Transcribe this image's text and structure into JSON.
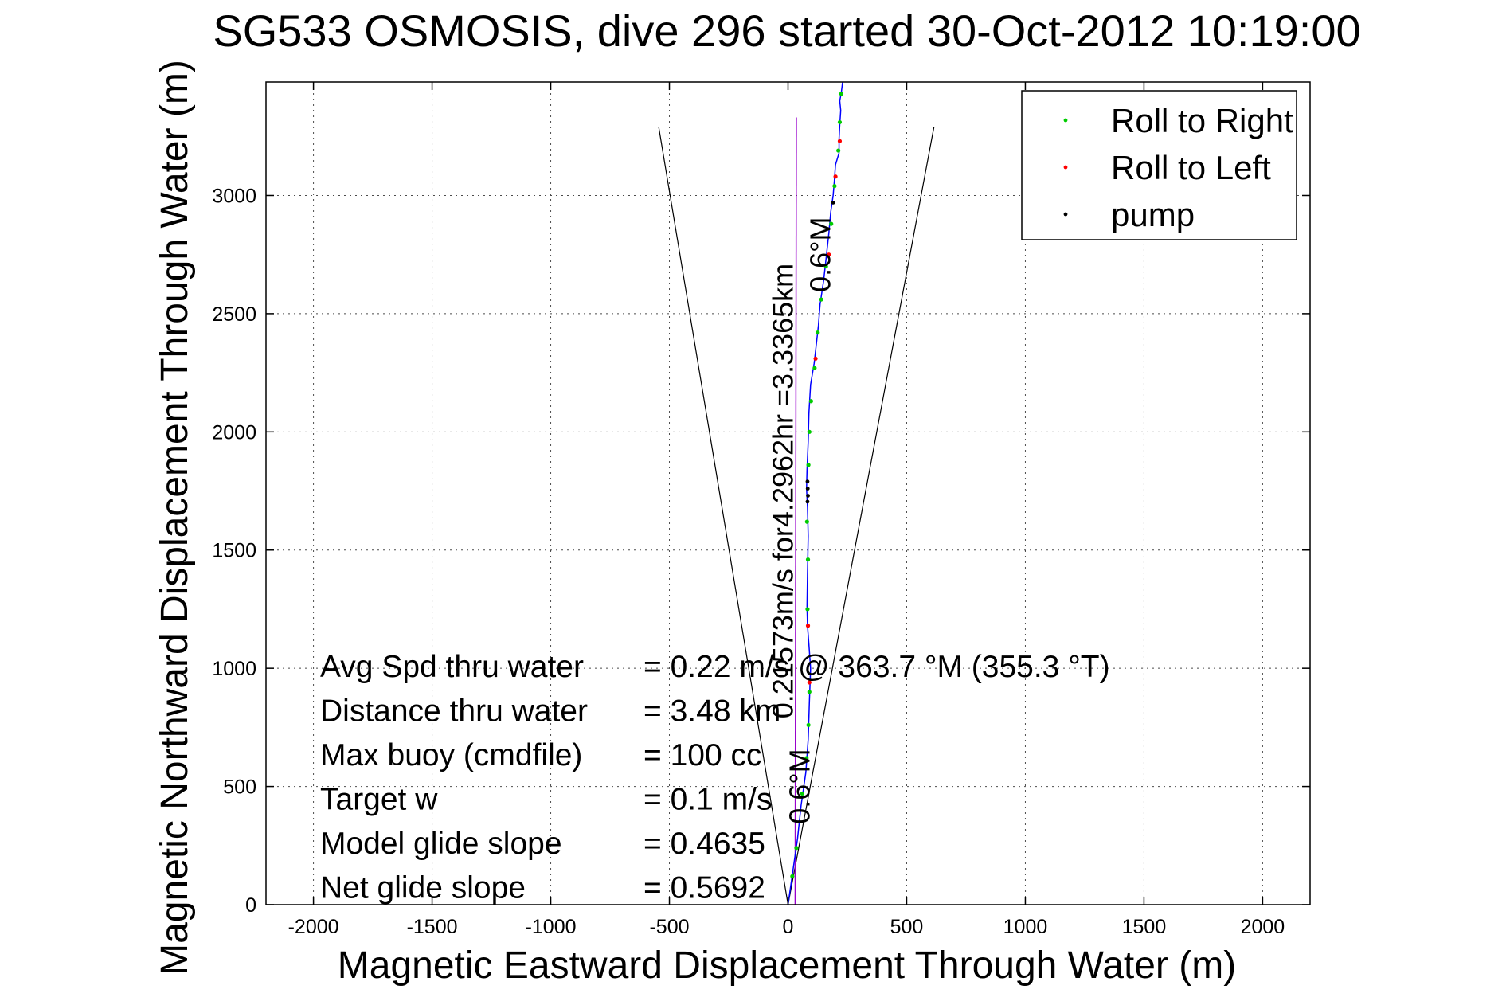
{
  "chart_data": {
    "type": "scatter",
    "title": "SG533 OSMOSIS, dive 296 started 30-Oct-2012 10:19:00",
    "xlabel": "Magnetic Eastward Displacement Through Water (m)",
    "ylabel": "Magnetic Northward Displacement Through Water (m)",
    "xlim": [
      -2200,
      2200
    ],
    "ylim": [
      0,
      3480
    ],
    "xticks": [
      -2000,
      -1500,
      -1000,
      -500,
      0,
      500,
      1000,
      1500,
      2000
    ],
    "yticks": [
      0,
      500,
      1000,
      1500,
      2000,
      2500,
      3000
    ],
    "grid": true,
    "legend": {
      "position": "top-right",
      "entries": [
        {
          "label": "Roll to Right",
          "color": "#00cc00"
        },
        {
          "label": "Roll to Left",
          "color": "#ff0000"
        },
        {
          "label": "pump",
          "color": "#000000"
        }
      ]
    },
    "track": {
      "color": "#0000ff",
      "x": [
        0,
        20,
        40,
        55,
        75,
        85,
        90,
        95,
        88,
        82,
        80,
        82,
        85,
        82,
        78,
        80,
        85,
        88,
        95,
        110,
        118,
        128,
        135,
        150,
        160,
        172,
        180,
        190,
        195,
        200,
        215,
        215,
        218,
        222,
        218,
        225,
        230
      ],
      "y": [
        0,
        140,
        280,
        420,
        560,
        700,
        860,
        1000,
        1100,
        1180,
        1260,
        1400,
        1560,
        1680,
        1760,
        1840,
        1960,
        2080,
        2200,
        2290,
        2360,
        2450,
        2540,
        2640,
        2730,
        2840,
        2930,
        3000,
        3060,
        3130,
        3180,
        3240,
        3300,
        3360,
        3400,
        3440,
        3480
      ]
    },
    "roll_right_points": {
      "x": [
        18,
        35,
        60,
        78,
        86,
        90,
        82,
        84,
        80,
        86,
        90,
        97,
        112,
        125,
        140,
        160,
        182,
        196,
        212,
        218,
        224
      ],
      "y": [
        120,
        240,
        470,
        620,
        760,
        900,
        1250,
        1460,
        1620,
        1860,
        2000,
        2130,
        2270,
        2420,
        2560,
        2700,
        2880,
        3040,
        3190,
        3310,
        3430
      ]
    },
    "roll_left_points": {
      "x": [
        90,
        84,
        116,
        172,
        200,
        218
      ],
      "y": [
        940,
        1180,
        2310,
        2750,
        3080,
        3230
      ]
    },
    "pump_points": {
      "x": [
        82,
        84,
        83,
        82,
        190
      ],
      "y": [
        1705,
        1730,
        1760,
        1790,
        2970
      ]
    },
    "heading_line": {
      "color": "#9900cc",
      "x": [
        30,
        35
      ],
      "y": [
        0,
        3330
      ]
    },
    "cone_lines": [
      {
        "x": [
          0,
          -545
        ],
        "y": [
          0,
          3290
        ]
      },
      {
        "x": [
          0,
          615
        ],
        "y": [
          0,
          3290
        ]
      }
    ],
    "annotations": [
      {
        "text": "0.21573m/s for4.2962hr =3.3365km",
        "x": 20,
        "y": 1750,
        "rotation": -90
      },
      {
        "text": "0.6°M",
        "x": 178,
        "y": 2750,
        "rotation": -90
      },
      {
        "text": "0.6°M",
        "x": 90,
        "y": 500,
        "rotation": -90
      }
    ],
    "stats": [
      {
        "label": "Avg Spd thru water",
        "value": "=  0.22 m/s @ 363.7 °M (355.3 °T)"
      },
      {
        "label": "Distance thru water",
        "value": "=  3.48 km"
      },
      {
        "label": "Max buoy (cmdfile)",
        "value": "= 100 cc"
      },
      {
        "label": "Target w",
        "value": "= 0.1 m/s"
      },
      {
        "label": "Model glide slope",
        "value": "= 0.4635"
      },
      {
        "label": "Net glide slope",
        "value": "= 0.5692"
      }
    ]
  }
}
